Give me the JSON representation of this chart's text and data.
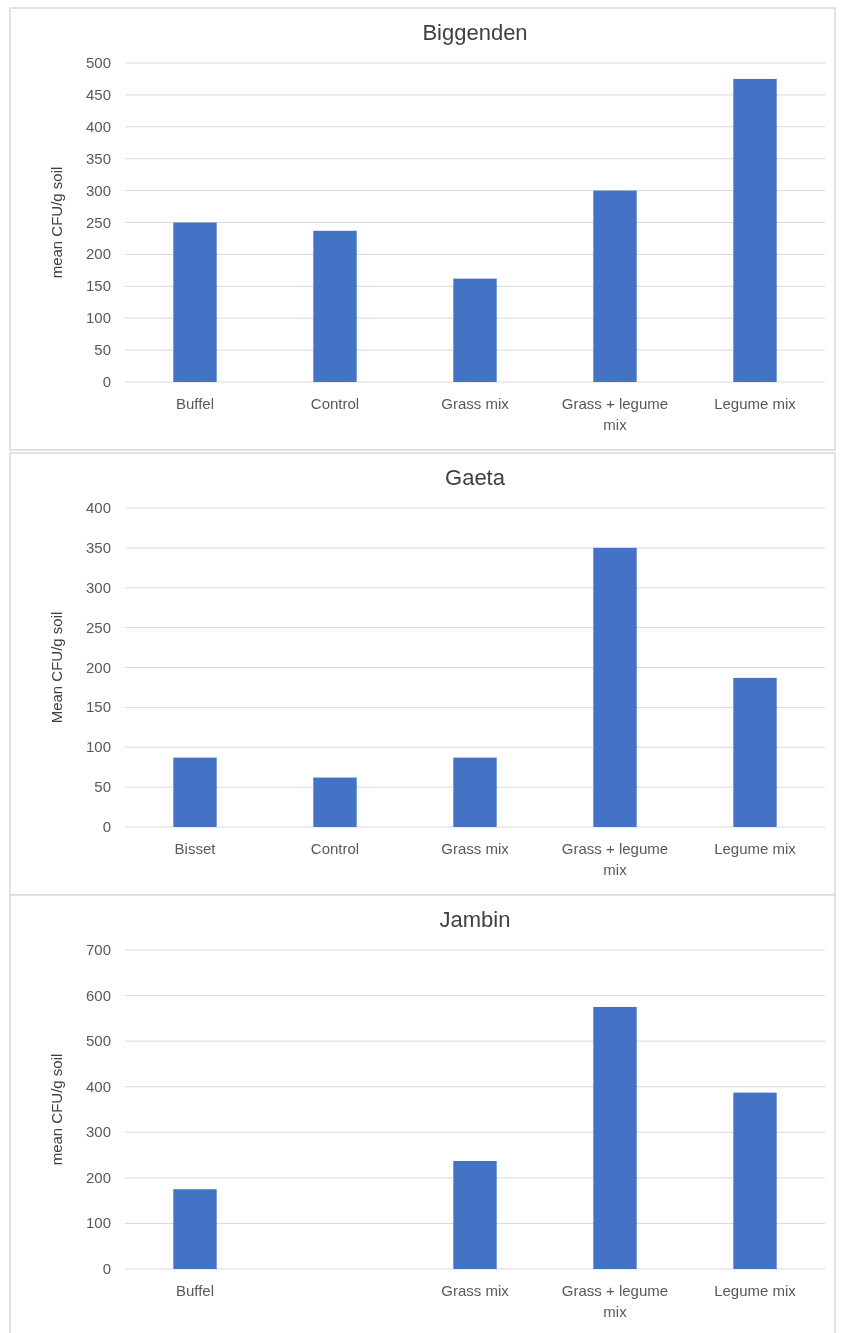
{
  "chart_data": [
    {
      "type": "bar",
      "title": "Biggenden",
      "ylabel": "mean CFU/g soil",
      "categories": [
        "Buffel",
        "Control",
        "Grass mix",
        "Grass + legume mix",
        "Legume mix"
      ],
      "values": [
        250,
        237,
        162,
        300,
        475
      ],
      "color": "#4472c4",
      "ylim": [
        0,
        500
      ],
      "yticks": [
        0,
        50,
        100,
        150,
        200,
        250,
        300,
        350,
        400,
        450,
        500
      ],
      "grid": "y"
    },
    {
      "type": "bar",
      "title": "Gaeta",
      "ylabel": "Mean CFU/g soil",
      "categories": [
        "Bisset",
        "Control",
        "Grass mix",
        "Grass + legume mix",
        "Legume mix"
      ],
      "values": [
        87,
        62,
        87,
        350,
        187
      ],
      "color": "#4472c4",
      "ylim": [
        0,
        400
      ],
      "yticks": [
        0,
        50,
        100,
        150,
        200,
        250,
        300,
        350,
        400
      ],
      "grid": "y"
    },
    {
      "type": "bar",
      "title": "Jambin",
      "ylabel": "mean CFU/g soil",
      "categories": [
        "Buffel",
        null,
        "Grass mix",
        "Grass + legume mix",
        "Legume mix"
      ],
      "values": [
        175,
        null,
        237,
        575,
        387
      ],
      "color": "#4472c4",
      "ylim": [
        0,
        700
      ],
      "yticks": [
        0,
        100,
        200,
        300,
        400,
        500,
        600,
        700
      ],
      "grid": "y"
    }
  ]
}
